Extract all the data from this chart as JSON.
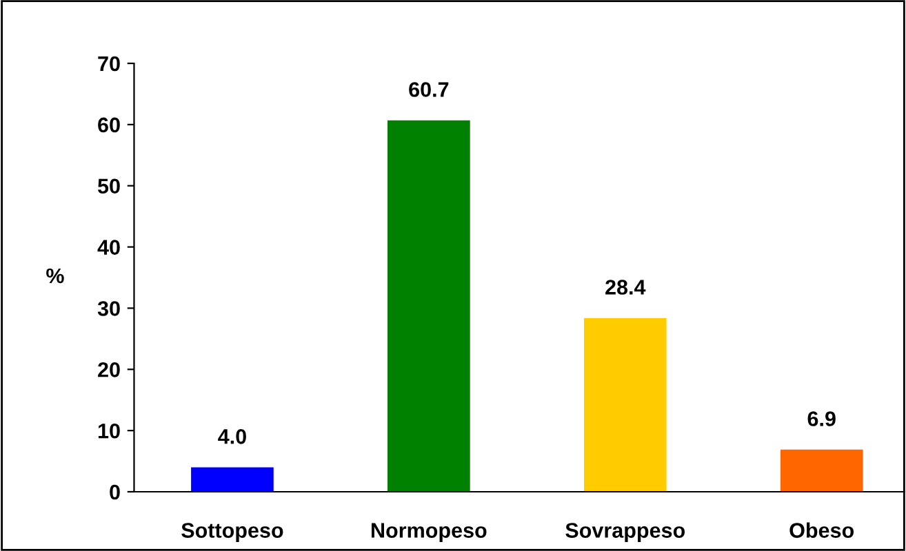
{
  "chart_data": {
    "type": "bar",
    "ylabel": "%",
    "categories": [
      "Sottopeso",
      "Normopeso",
      "Sovrappeso",
      "Obeso"
    ],
    "values": [
      4.0,
      60.7,
      28.4,
      6.9
    ],
    "colors": [
      "#0000ff",
      "#008000",
      "#ffcc00",
      "#ff6600"
    ],
    "value_labels": [
      "4.0",
      "60.7",
      "28.4",
      "6.9"
    ],
    "ylim": [
      0,
      70
    ],
    "yticks": [
      0,
      10,
      20,
      30,
      40,
      50,
      60,
      70
    ],
    "grid": false
  }
}
